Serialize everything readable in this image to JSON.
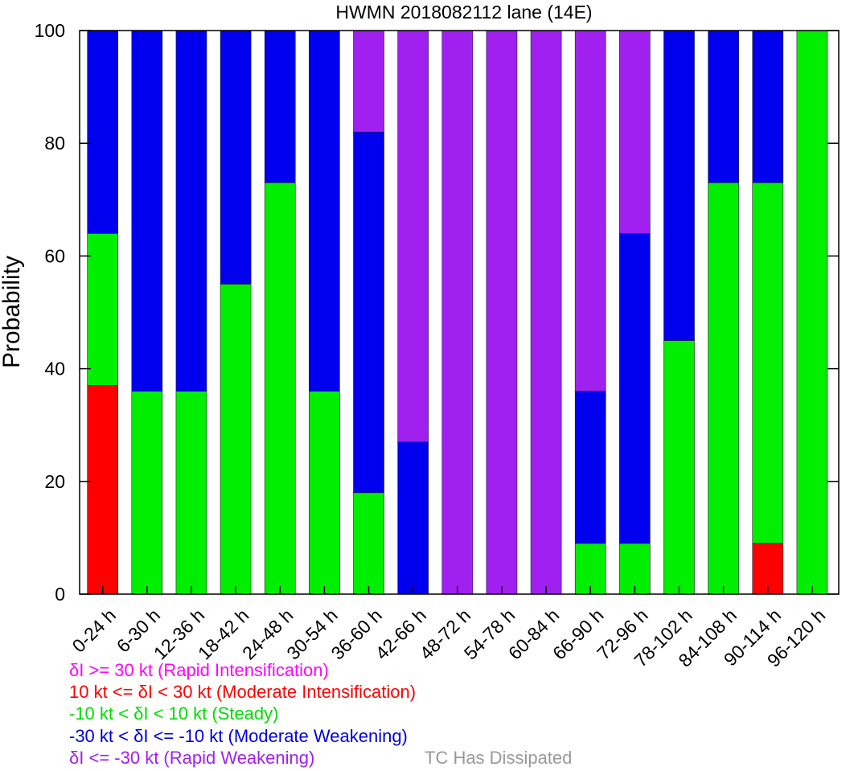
{
  "chart_data": {
    "type": "bar",
    "stacked": true,
    "title": "HWMN 2018082112 lane (14E)",
    "xlabel": "",
    "ylabel": "Probability",
    "ylim": [
      0,
      100
    ],
    "yticks": [
      "0",
      "20",
      "40",
      "60",
      "80",
      "100"
    ],
    "grid": false,
    "categories": [
      "0-24 h",
      "6-30 h",
      "12-36 h",
      "18-42 h",
      "24-48 h",
      "30-54 h",
      "36-60 h",
      "42-66 h",
      "48-72 h",
      "54-78 h",
      "60-84 h",
      "66-90 h",
      "72-96 h",
      "78-102 h",
      "84-108 h",
      "90-114 h",
      "96-120 h"
    ],
    "series": [
      {
        "name": "Moderate Intensification",
        "color": "#ff0000",
        "values": [
          37,
          0,
          0,
          0,
          0,
          0,
          0,
          0,
          0,
          0,
          0,
          0,
          0,
          0,
          0,
          9,
          0
        ]
      },
      {
        "name": "Steady",
        "color": "#00ee00",
        "values": [
          27,
          36,
          36,
          55,
          73,
          36,
          18,
          0,
          0,
          0,
          0,
          9,
          9,
          45,
          73,
          64,
          100
        ]
      },
      {
        "name": "Moderate Weakening",
        "color": "#0000ee",
        "values": [
          36,
          64,
          64,
          45,
          27,
          64,
          64,
          27,
          0,
          0,
          0,
          27,
          55,
          55,
          27,
          27,
          0
        ]
      },
      {
        "name": "Rapid Weakening",
        "color": "#a020f0",
        "values": [
          0,
          0,
          0,
          0,
          0,
          0,
          18,
          73,
          100,
          100,
          100,
          64,
          36,
          0,
          0,
          0,
          0
        ]
      }
    ]
  },
  "legend": [
    {
      "text": "δI >= 30 kt (Rapid Intensification)",
      "color": "#ff00ff"
    },
    {
      "text": "10 kt <= δI < 30 kt (Moderate Intensification)",
      "color": "#ff0000"
    },
    {
      "text": "-10 kt < δI < 10 kt (Steady)",
      "color": "#00dd00"
    },
    {
      "text": "-30 kt < δI <= -10 kt (Moderate Weakening)",
      "color": "#0000dd"
    },
    {
      "text": "δI <= -30 kt (Rapid Weakening)",
      "color": "#a020f0"
    }
  ],
  "dissipated_note": "TC Has Dissipated",
  "dissipated_color": "#999999"
}
